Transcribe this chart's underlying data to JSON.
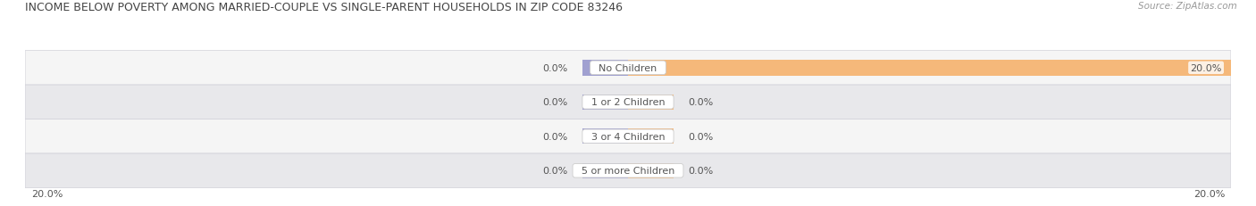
{
  "title": "INCOME BELOW POVERTY AMONG MARRIED-COUPLE VS SINGLE-PARENT HOUSEHOLDS IN ZIP CODE 83246",
  "source": "Source: ZipAtlas.com",
  "categories": [
    "No Children",
    "1 or 2 Children",
    "3 or 4 Children",
    "5 or more Children"
  ],
  "married_values": [
    0.0,
    0.0,
    0.0,
    0.0
  ],
  "single_values": [
    20.0,
    0.0,
    0.0,
    0.0
  ],
  "married_color": "#a0a0d0",
  "single_color": "#f5b87a",
  "row_bg_light": "#f5f5f5",
  "row_bg_dark": "#e8e8eb",
  "row_border": "#d0d0d8",
  "axis_min": -20.0,
  "axis_max": 20.0,
  "min_bar_width": 1.5,
  "title_fontsize": 9.0,
  "source_fontsize": 7.5,
  "label_fontsize": 8.0,
  "category_fontsize": 8.0,
  "axis_label_fontsize": 8.0,
  "bar_height": 0.45,
  "background_color": "#ffffff",
  "title_color": "#444444",
  "text_color": "#555555"
}
